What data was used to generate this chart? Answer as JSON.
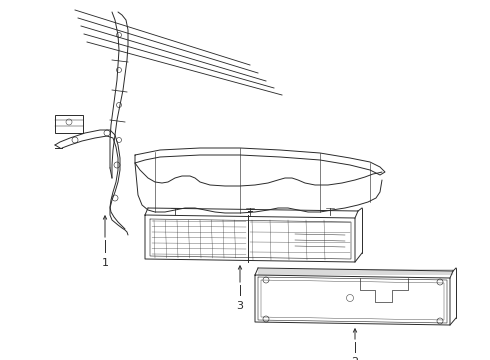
{
  "bg_color": "#ffffff",
  "line_color": "#2a2a2a",
  "lw": 0.7,
  "label_fontsize": 8
}
